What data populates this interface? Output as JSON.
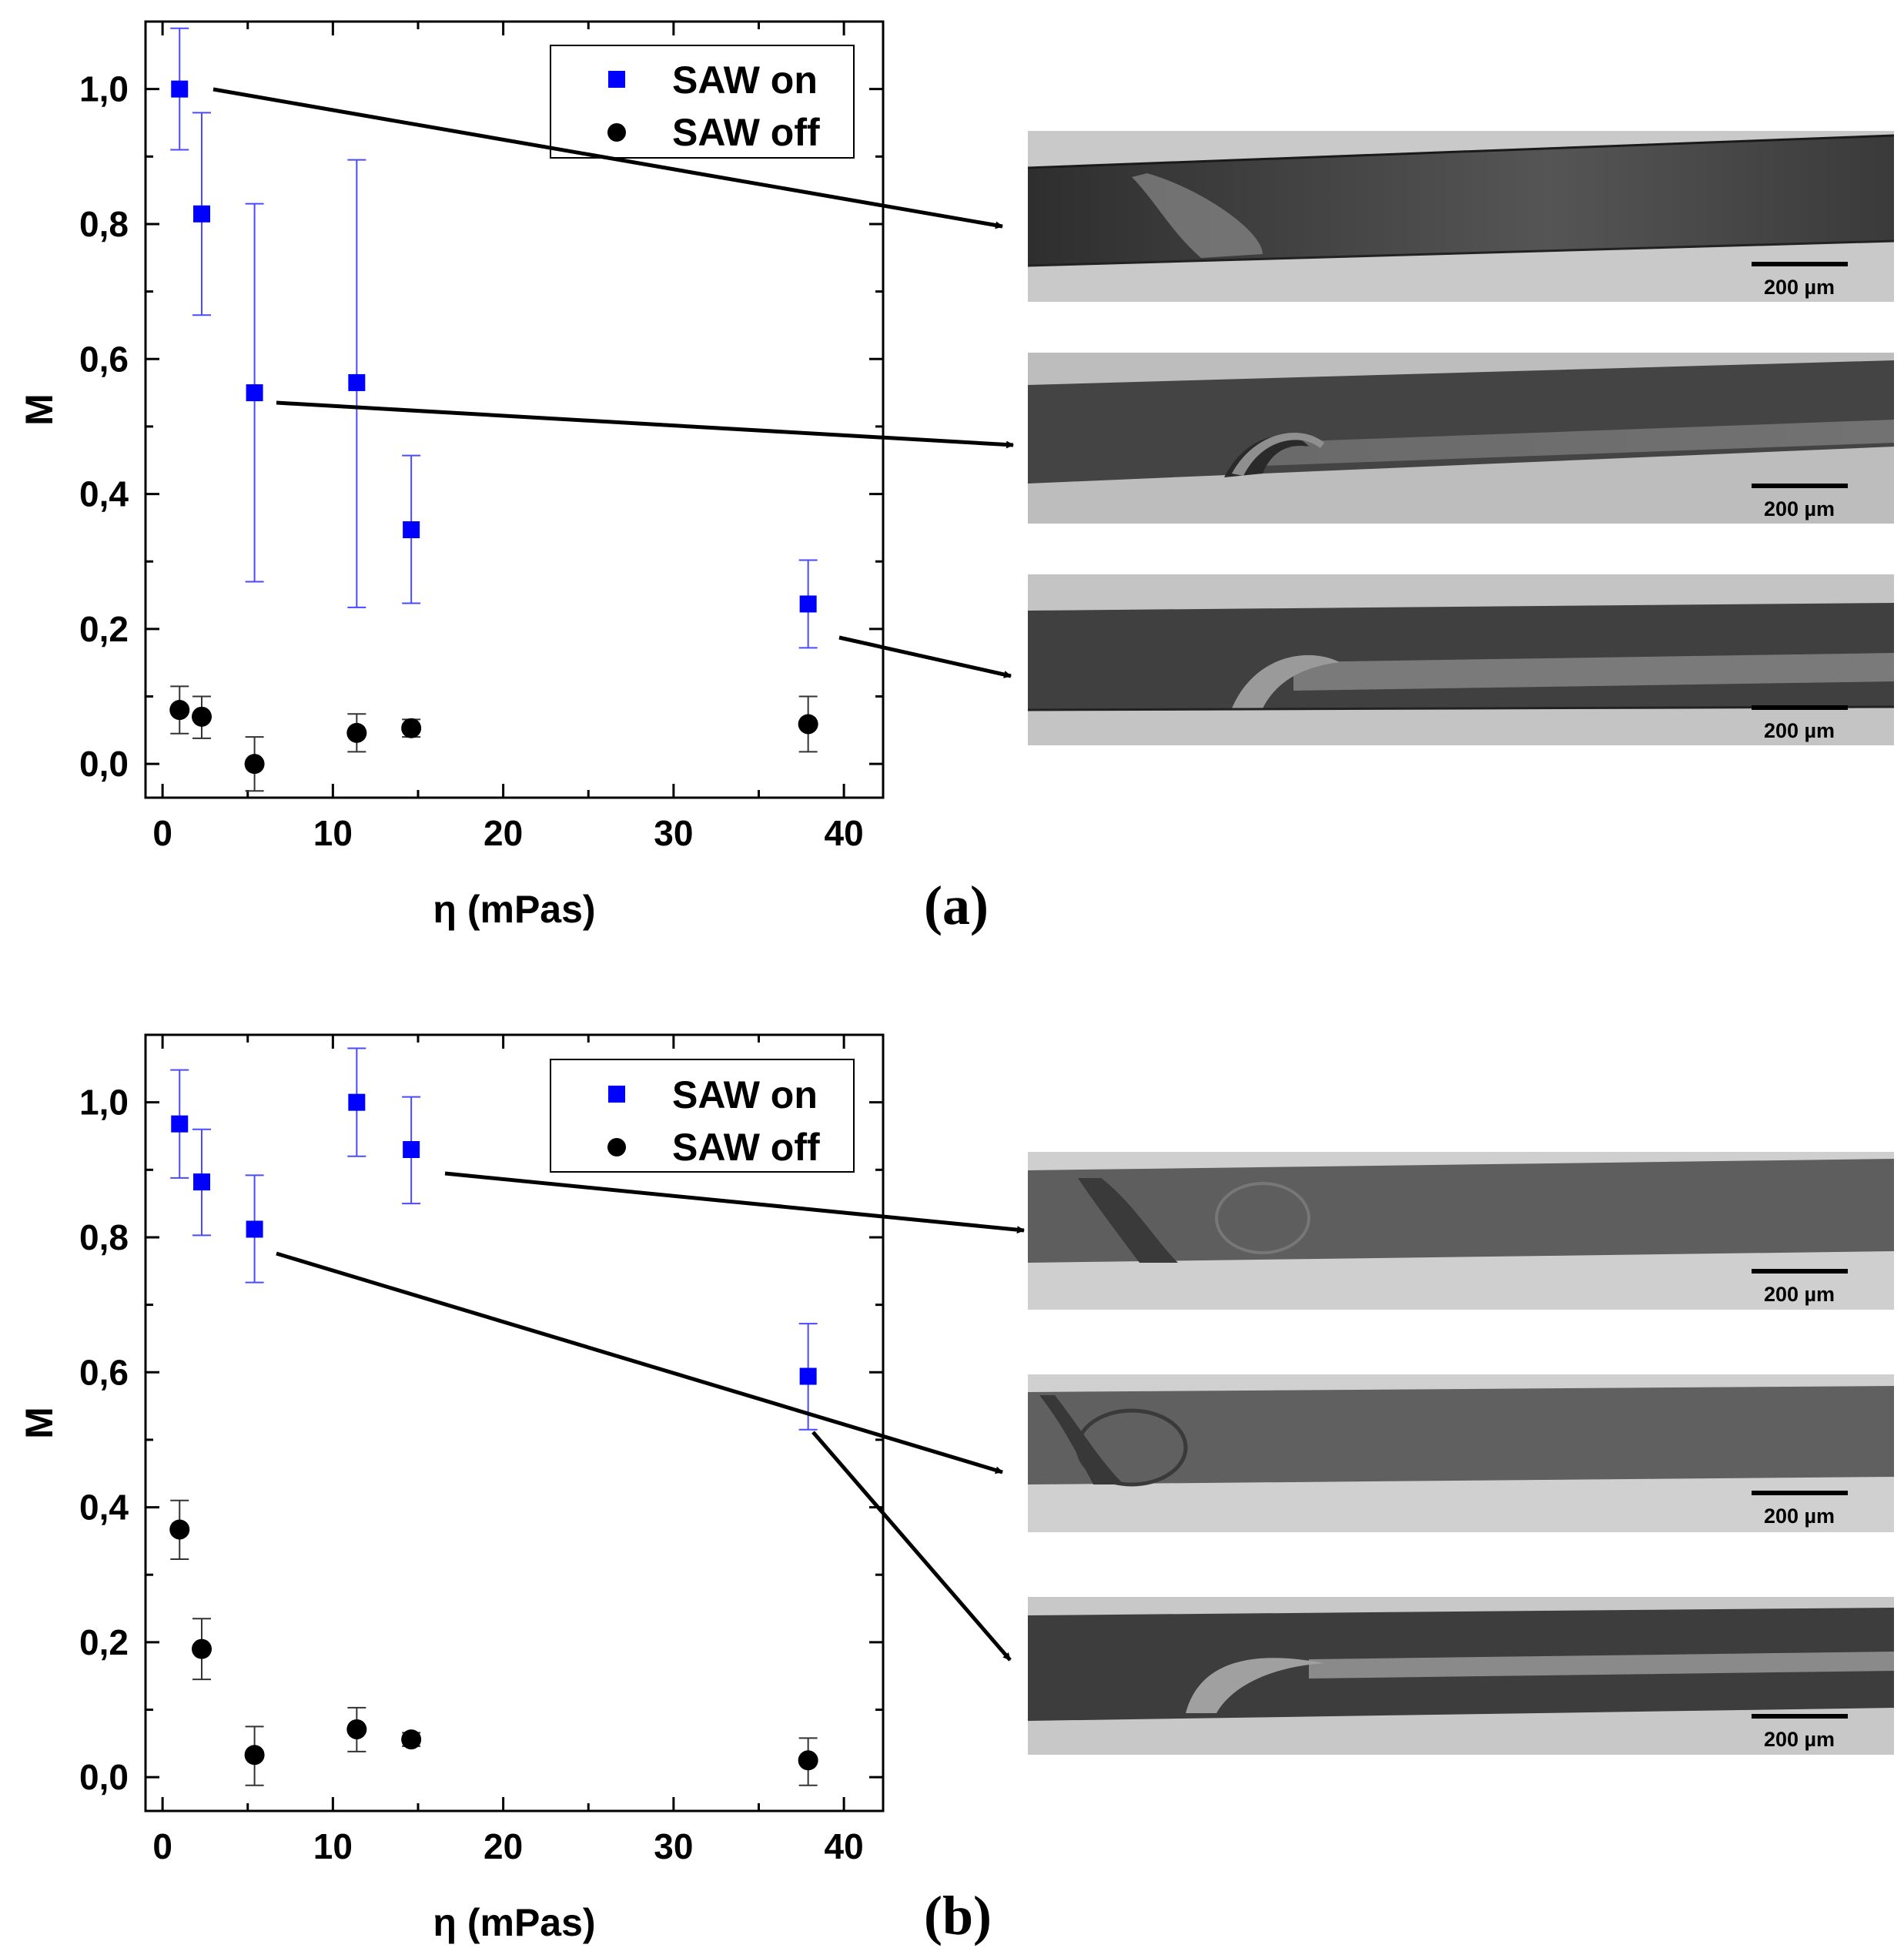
{
  "panels": [
    {
      "label": "(a)",
      "legend": {
        "on": "SAW on",
        "off": "SAW off"
      },
      "scale_bar": "200 µm"
    },
    {
      "label": "(b)",
      "legend": {
        "on": "SAW on",
        "off": "SAW off"
      },
      "scale_bar": "200 µm"
    }
  ],
  "chart_data": [
    {
      "type": "scatter",
      "title": "",
      "xlabel": "η (mPas)",
      "ylabel": "M",
      "xlim": [
        -1,
        42.3
      ],
      "ylim": [
        -0.05,
        1.1
      ],
      "x_ticks": [
        "0",
        "10",
        "20",
        "30",
        "40"
      ],
      "y_ticks": [
        "0,0",
        "0,2",
        "0,4",
        "0,6",
        "0,8",
        "1,0"
      ],
      "grid": false,
      "legend_position": "top-right",
      "series": [
        {
          "name": "SAW on",
          "marker": "square",
          "color": "#0000ff",
          "points": [
            {
              "x": 1.0,
              "y": 1.0,
              "err_low": 0.91,
              "err_high": 1.09
            },
            {
              "x": 2.3,
              "y": 0.815,
              "err_low": 0.665,
              "err_high": 0.965
            },
            {
              "x": 5.4,
              "y": 0.55,
              "err_low": 0.27,
              "err_high": 0.83
            },
            {
              "x": 11.4,
              "y": 0.565,
              "err_low": 0.232,
              "err_high": 0.895
            },
            {
              "x": 14.6,
              "y": 0.347,
              "err_low": 0.238,
              "err_high": 0.457
            },
            {
              "x": 37.9,
              "y": 0.237,
              "err_low": 0.172,
              "err_high": 0.302
            }
          ]
        },
        {
          "name": "SAW off",
          "marker": "circle",
          "color": "#000000",
          "points": [
            {
              "x": 1.0,
              "y": 0.08,
              "err_low": 0.045,
              "err_high": 0.115
            },
            {
              "x": 2.3,
              "y": 0.07,
              "err_low": 0.038,
              "err_high": 0.1
            },
            {
              "x": 5.4,
              "y": 0.0,
              "err_low": -0.04,
              "err_high": 0.04
            },
            {
              "x": 11.4,
              "y": 0.046,
              "err_low": 0.018,
              "err_high": 0.074
            },
            {
              "x": 14.6,
              "y": 0.053,
              "err_low": 0.04,
              "err_high": 0.066
            },
            {
              "x": 37.9,
              "y": 0.059,
              "err_low": 0.018,
              "err_high": 0.1
            }
          ]
        }
      ]
    },
    {
      "type": "scatter",
      "title": "",
      "xlabel": "η (mPas)",
      "ylabel": "M",
      "xlim": [
        -1,
        42.3
      ],
      "ylim": [
        -0.05,
        1.1
      ],
      "x_ticks": [
        "0",
        "10",
        "20",
        "30",
        "40"
      ],
      "y_ticks": [
        "0,0",
        "0,2",
        "0,4",
        "0,6",
        "0,8",
        "1,0"
      ],
      "grid": false,
      "legend_position": "top-right",
      "series": [
        {
          "name": "SAW on",
          "marker": "square",
          "color": "#0000ff",
          "points": [
            {
              "x": 1.0,
              "y": 0.968,
              "err_low": 0.888,
              "err_high": 1.048
            },
            {
              "x": 2.3,
              "y": 0.882,
              "err_low": 0.803,
              "err_high": 0.96
            },
            {
              "x": 5.4,
              "y": 0.812,
              "err_low": 0.733,
              "err_high": 0.892
            },
            {
              "x": 11.4,
              "y": 1.0,
              "err_low": 0.92,
              "err_high": 1.08
            },
            {
              "x": 14.6,
              "y": 0.93,
              "err_low": 0.85,
              "err_high": 1.008
            },
            {
              "x": 37.9,
              "y": 0.594,
              "err_low": 0.515,
              "err_high": 0.672
            }
          ]
        },
        {
          "name": "SAW off",
          "marker": "circle",
          "color": "#000000",
          "points": [
            {
              "x": 1.0,
              "y": 0.367,
              "err_low": 0.323,
              "err_high": 0.41
            },
            {
              "x": 2.3,
              "y": 0.19,
              "err_low": 0.145,
              "err_high": 0.235
            },
            {
              "x": 5.4,
              "y": 0.033,
              "err_low": -0.012,
              "err_high": 0.075
            },
            {
              "x": 11.4,
              "y": 0.071,
              "err_low": 0.038,
              "err_high": 0.103
            },
            {
              "x": 14.6,
              "y": 0.056,
              "err_low": 0.046,
              "err_high": 0.066
            },
            {
              "x": 37.9,
              "y": 0.025,
              "err_low": -0.012,
              "err_high": 0.058
            }
          ]
        }
      ]
    }
  ]
}
